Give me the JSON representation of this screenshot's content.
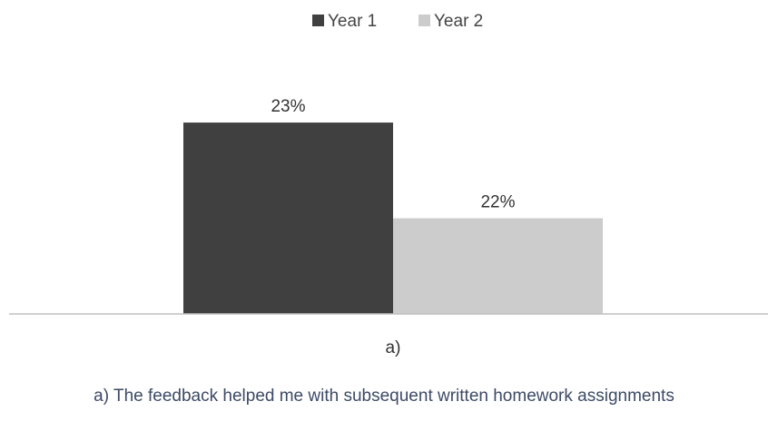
{
  "chart_data": {
    "type": "bar",
    "categories": [
      "a)"
    ],
    "series": [
      {
        "name": "Year 1",
        "values": [
          23
        ],
        "labels": [
          "23%"
        ],
        "color": "#404040"
      },
      {
        "name": "Year 2",
        "values": [
          22
        ],
        "labels": [
          "22%"
        ],
        "color": "#cccccc"
      }
    ],
    "ylim": [
      21,
      23.2
    ],
    "grid": false,
    "legend_position": "top-center",
    "axis_color": "#bfbfbf"
  },
  "caption": "a) The feedback helped me with subsequent written homework assignments"
}
